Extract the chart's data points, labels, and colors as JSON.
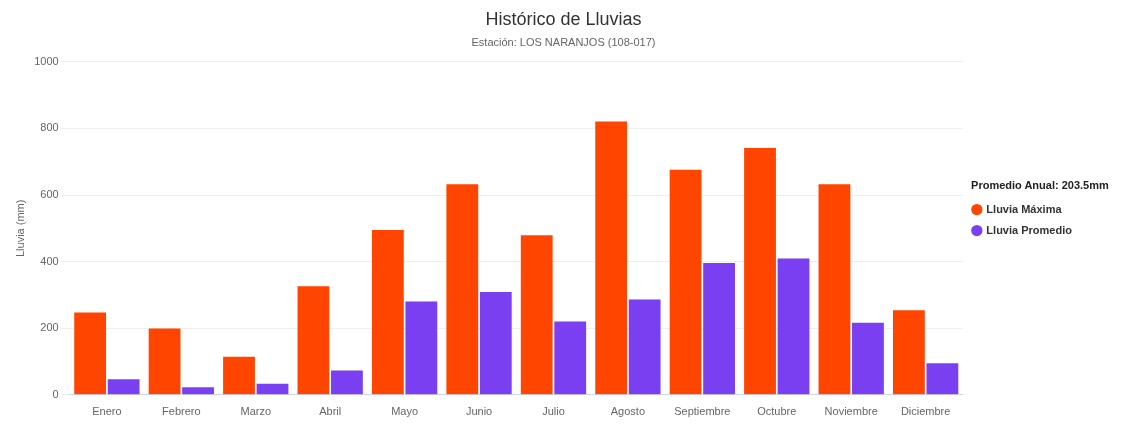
{
  "chart_data": {
    "type": "bar",
    "title": "Histórico de Lluvias",
    "subtitle": "Estación: LOS NARANJOS (108-017)",
    "ylabel": "Lluvia (mm)",
    "legend_title": "Promedio Anual: 203.5mm",
    "categories": [
      "Enero",
      "Febrero",
      "Marzo",
      "Abril",
      "Mayo",
      "Junio",
      "Julio",
      "Agosto",
      "Septiembre",
      "Octubre",
      "Noviembre",
      "Diciembre"
    ],
    "series": [
      {
        "name": "Lluvia Máxima",
        "color": "#ff4500",
        "values": [
          247,
          199,
          114,
          326,
          495,
          632,
          479,
          821,
          676,
          741,
          632,
          254
        ]
      },
      {
        "name": "Lluvia Promedio",
        "color": "#7b3ff2",
        "values": [
          47,
          23,
          33,
          73,
          280,
          309,
          220,
          286,
          396,
          409,
          216,
          95
        ]
      }
    ],
    "ylim": [
      0,
      1000
    ],
    "yticks": [
      0,
      200,
      400,
      600,
      800,
      1000
    ],
    "grid": "y",
    "legend": "right"
  }
}
